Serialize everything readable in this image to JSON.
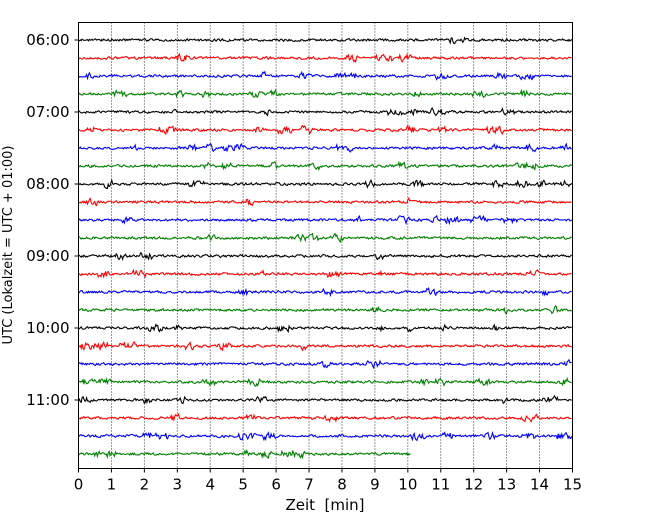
{
  "chart_data": {
    "type": "line",
    "title": "",
    "xlabel": "Zeit  [min]",
    "ylabel": "UTC (Lokalzeit = UTC + 01:00)",
    "xlim": [
      0,
      15
    ],
    "x_ticks": [
      0,
      1,
      2,
      3,
      4,
      5,
      6,
      7,
      8,
      9,
      10,
      11,
      12,
      13,
      14,
      15
    ],
    "y_tick_labels": [
      "06:00",
      "07:00",
      "08:00",
      "09:00",
      "10:00",
      "11:00"
    ],
    "grid": "vertical dotted at each minute",
    "color_cycle": [
      "#000000",
      "#ff0000",
      "#0000ff",
      "#008000"
    ],
    "trace_interval_minutes": 15,
    "series": [
      {
        "start": "06:00",
        "end_minute": 15
      },
      {
        "start": "06:15",
        "end_minute": 15
      },
      {
        "start": "06:30",
        "end_minute": 15
      },
      {
        "start": "06:45",
        "end_minute": 15
      },
      {
        "start": "07:00",
        "end_minute": 15
      },
      {
        "start": "07:15",
        "end_minute": 15
      },
      {
        "start": "07:30",
        "end_minute": 15
      },
      {
        "start": "07:45",
        "end_minute": 15
      },
      {
        "start": "08:00",
        "end_minute": 15
      },
      {
        "start": "08:15",
        "end_minute": 15
      },
      {
        "start": "08:30",
        "end_minute": 15
      },
      {
        "start": "08:45",
        "end_minute": 15
      },
      {
        "start": "09:00",
        "end_minute": 15
      },
      {
        "start": "09:15",
        "end_minute": 15
      },
      {
        "start": "09:30",
        "end_minute": 15
      },
      {
        "start": "09:45",
        "end_minute": 15
      },
      {
        "start": "10:00",
        "end_minute": 15
      },
      {
        "start": "10:15",
        "end_minute": 15
      },
      {
        "start": "10:30",
        "end_minute": 15
      },
      {
        "start": "10:45",
        "end_minute": 15
      },
      {
        "start": "11:00",
        "end_minute": 15
      },
      {
        "start": "11:15",
        "end_minute": 15
      },
      {
        "start": "11:30",
        "end_minute": 15
      },
      {
        "start": "11:45",
        "end_minute": 10.1
      }
    ]
  }
}
